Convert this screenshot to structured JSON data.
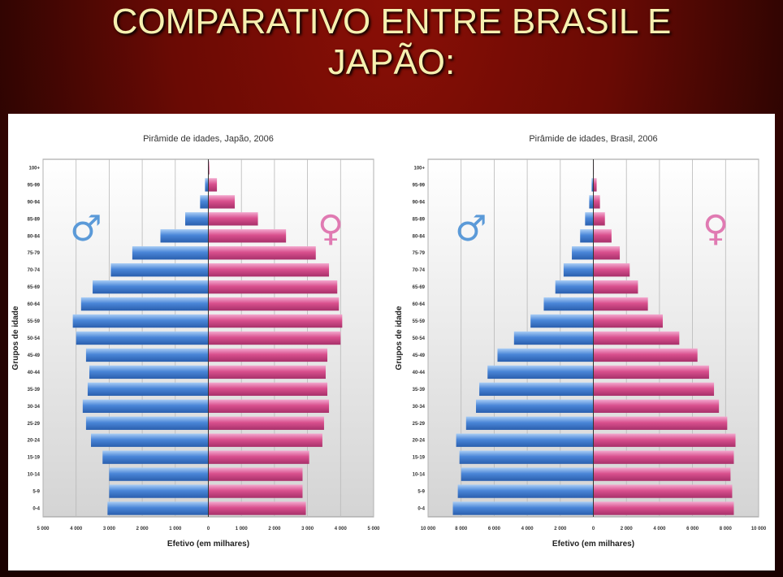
{
  "slide": {
    "title_line1": "COMPARATIVO ENTRE BRASIL E",
    "title_line2": "JAPÃO:"
  },
  "colors": {
    "male": "#4a86d8",
    "female": "#d9508e",
    "title": "#f6f0b0"
  },
  "chart_data": [
    {
      "type": "bar",
      "title": "Pirâmide de idades, Japão, 2006",
      "ylabel": "Grupos de idade",
      "xlabel": "Efetivo (em milhares)",
      "categories": [
        "100+",
        "95-99",
        "90-94",
        "85-89",
        "80-84",
        "75-79",
        "70-74",
        "65-69",
        "60-64",
        "55-59",
        "50-54",
        "45-49",
        "40-44",
        "35-39",
        "30-34",
        "25-29",
        "20-24",
        "15-19",
        "10-14",
        "5-9",
        "0-4"
      ],
      "xlim": [
        -5000,
        5000
      ],
      "xticks": [
        "5 000",
        "4 000",
        "3 000",
        "2 000",
        "1 000",
        "0",
        "1 000",
        "2 000",
        "3 000",
        "4 000",
        "5 000"
      ],
      "male_symbol": "♂",
      "female_symbol": "♀",
      "series": [
        {
          "name": "♂",
          "values": [
            10,
            100,
            250,
            700,
            1450,
            2300,
            2950,
            3500,
            3850,
            4100,
            4000,
            3700,
            3600,
            3650,
            3800,
            3700,
            3550,
            3200,
            3000,
            3000,
            3050
          ]
        },
        {
          "name": "♀",
          "values": [
            30,
            260,
            800,
            1500,
            2350,
            3250,
            3650,
            3900,
            3950,
            4050,
            4000,
            3600,
            3550,
            3600,
            3650,
            3500,
            3450,
            3050,
            2850,
            2850,
            2950
          ]
        }
      ]
    },
    {
      "type": "bar",
      "title": "Pirâmide de idades, Brasil, 2006",
      "ylabel": "Grupos de idade",
      "xlabel": "Efetivo (em milhares)",
      "categories": [
        "100+",
        "95-99",
        "90-94",
        "85-89",
        "80-84",
        "75-79",
        "70-74",
        "65-69",
        "60-64",
        "55-59",
        "50-54",
        "45-49",
        "40-44",
        "35-39",
        "30-34",
        "25-29",
        "20-24",
        "15-19",
        "10-14",
        "5-9",
        "0-4"
      ],
      "xlim": [
        -10000,
        10000
      ],
      "xticks": [
        "10 000",
        "8 000",
        "6 000",
        "4 000",
        "2 000",
        "0",
        "2 000",
        "4 000",
        "6 000",
        "8 000",
        "10 000"
      ],
      "male_symbol": "♂",
      "female_symbol": "♀",
      "series": [
        {
          "name": "♂",
          "values": [
            20,
            100,
            250,
            500,
            800,
            1300,
            1800,
            2300,
            3000,
            3800,
            4800,
            5800,
            6400,
            6900,
            7100,
            7700,
            8300,
            8100,
            8000,
            8200,
            8500
          ]
        },
        {
          "name": "♀",
          "values": [
            30,
            200,
            400,
            700,
            1100,
            1600,
            2200,
            2700,
            3300,
            4200,
            5200,
            6300,
            7000,
            7300,
            7600,
            8100,
            8600,
            8500,
            8300,
            8400,
            8500
          ]
        }
      ]
    }
  ]
}
